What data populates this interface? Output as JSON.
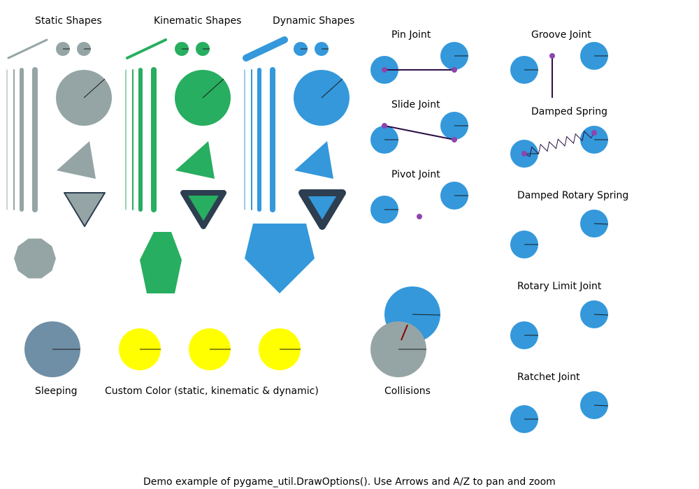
{
  "labels": {
    "static_shapes": "Static Shapes",
    "kinematic_shapes": "Kinematic Shapes",
    "dynamic_shapes": "Dynamic Shapes",
    "pin_joint": "Pin Joint",
    "groove_joint": "Groove Joint",
    "slide_joint": "Slide Joint",
    "damped_spring": "Damped Spring",
    "pivot_joint": "Pivot Joint",
    "damped_rotary_spring": "Damped Rotary Spring",
    "rotary_limit_joint": "Rotary Limit Joint",
    "ratchet_joint": "Ratchet Joint",
    "sleeping": "Sleeping",
    "custom_color": "Custom Color (static, kinematic & dynamic)",
    "collisions": "Collisions",
    "footer": "Demo example of pygame_util.DrawOptions(). Use Arrows and A/Z to pan and zoom"
  },
  "colors": {
    "static": "#95A5A6",
    "kinematic": "#27AE60",
    "dynamic": "#3498DB",
    "sleeping": "#6F8FA6",
    "custom": "#FFFF00",
    "constraint": "#8E44AD",
    "constraint_line": "#2C0F46",
    "outline": "#2C3E50",
    "line": "#1A1A1A"
  }
}
